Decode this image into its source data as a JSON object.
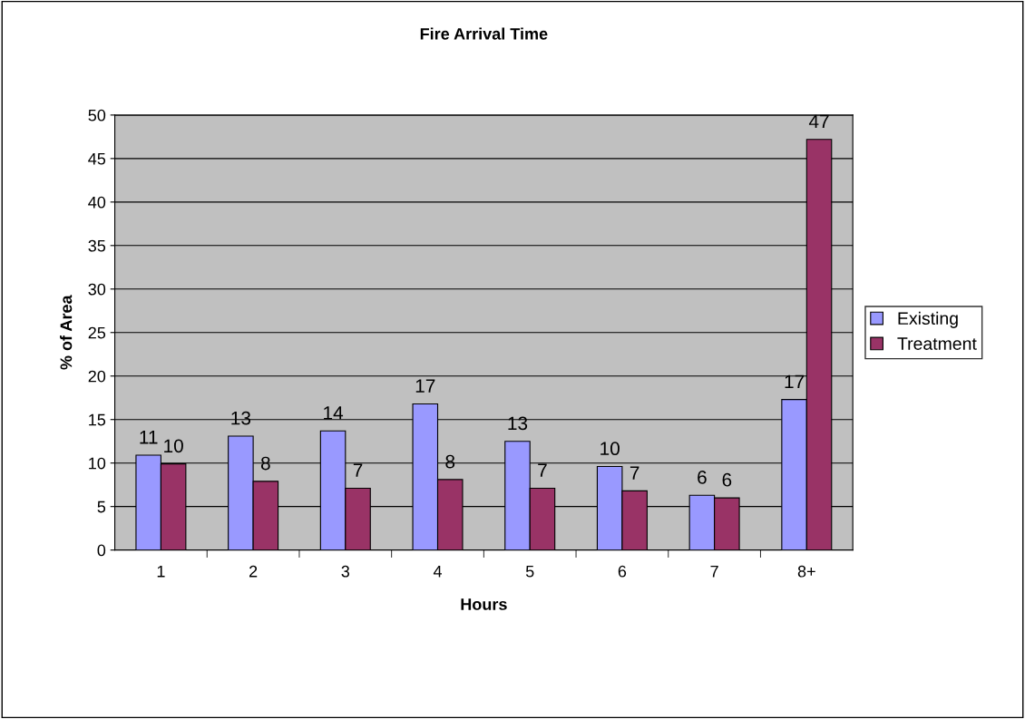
{
  "chart_data": {
    "type": "bar",
    "title": "Fire Arrival Time",
    "xlabel": "Hours",
    "ylabel": "% of Area",
    "categories": [
      "1",
      "2",
      "3",
      "4",
      "5",
      "6",
      "7",
      "8+"
    ],
    "series": [
      {
        "name": "Existing",
        "color": "#9999ff",
        "values": [
          10.9,
          13.1,
          13.7,
          16.8,
          12.5,
          9.6,
          6.3,
          17.3
        ],
        "value_labels": [
          "11",
          "13",
          "14",
          "17",
          "13",
          "10",
          "6",
          "17"
        ]
      },
      {
        "name": "Treatment",
        "color": "#993366",
        "values": [
          9.9,
          7.9,
          7.1,
          8.1,
          7.1,
          6.8,
          6.0,
          47.2
        ],
        "value_labels": [
          "10",
          "8",
          "7",
          "8",
          "7",
          "7",
          "6",
          "47"
        ]
      }
    ],
    "ylim": [
      0,
      50
    ],
    "yticks": [
      0,
      5,
      10,
      15,
      20,
      25,
      30,
      35,
      40,
      45,
      50
    ],
    "grid": "y",
    "legend": "right"
  }
}
